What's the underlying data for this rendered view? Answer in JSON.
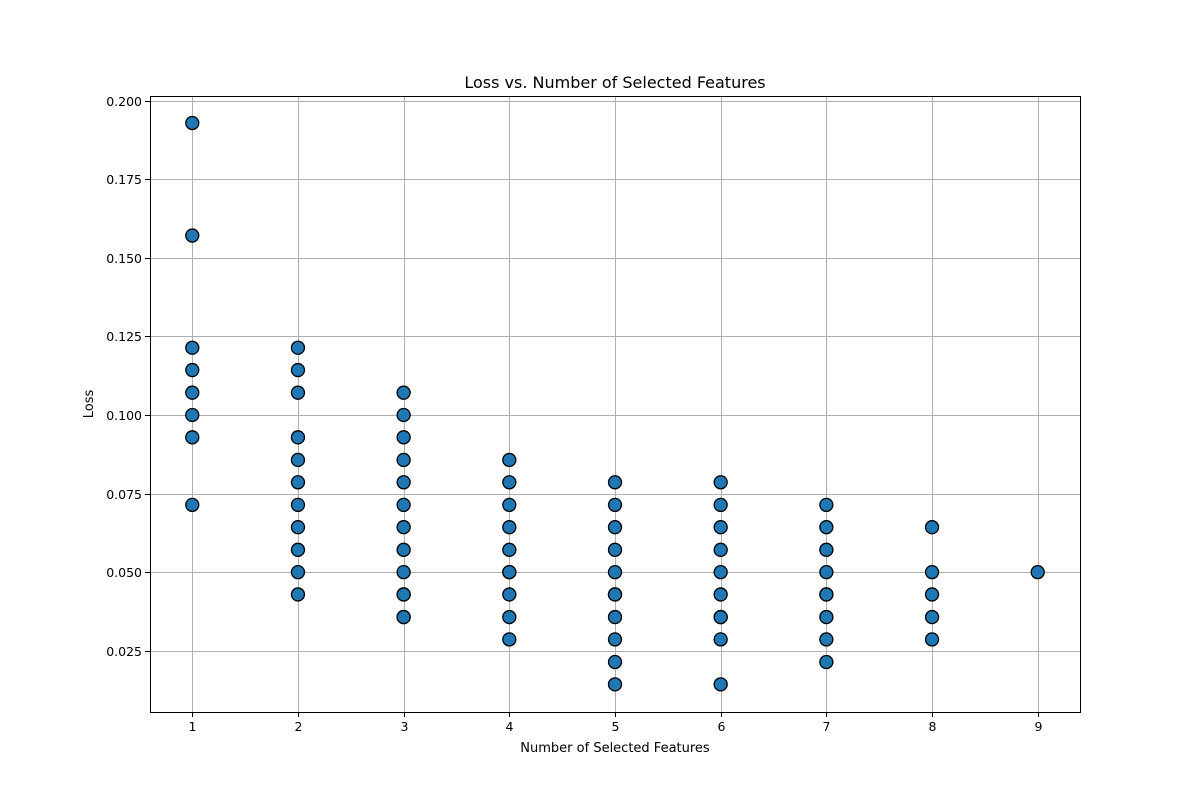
{
  "chart_data": {
    "type": "scatter",
    "title": "Loss vs. Number of Selected Features",
    "xlabel": "Number of Selected Features",
    "ylabel": "Loss",
    "xlim": [
      0.6,
      9.4
    ],
    "ylim": [
      0.0055,
      0.2015
    ],
    "xticks": [
      1,
      2,
      3,
      4,
      5,
      6,
      7,
      8,
      9
    ],
    "yticks": [
      0.025,
      0.05,
      0.075,
      0.1,
      0.125,
      0.15,
      0.175,
      0.2
    ],
    "ytick_labels": [
      "0.025",
      "0.050",
      "0.075",
      "0.100",
      "0.125",
      "0.150",
      "0.175",
      "0.200"
    ],
    "grid": true,
    "colors": {
      "point_fill": "#1f77b4",
      "point_edge": "#000000",
      "grid": "#b0b0b0"
    },
    "series": [
      {
        "x": [
          1,
          1,
          1,
          1,
          1,
          1,
          1,
          1,
          2,
          2,
          2,
          2,
          2,
          2,
          2,
          2,
          2,
          2,
          2,
          3,
          3,
          3,
          3,
          3,
          3,
          3,
          3,
          3,
          3,
          3,
          3,
          3,
          4,
          4,
          4,
          4,
          4,
          4,
          4,
          4,
          4,
          4,
          5,
          5,
          5,
          5,
          5,
          5,
          5,
          5,
          5,
          5,
          5,
          6,
          6,
          6,
          6,
          6,
          6,
          6,
          6,
          6,
          6,
          7,
          7,
          7,
          7,
          7,
          7,
          7,
          7,
          7,
          8,
          8,
          8,
          8,
          8,
          9
        ],
        "y": [
          0.1929,
          0.1571,
          0.1214,
          0.1143,
          0.1071,
          0.1,
          0.0929,
          0.0714,
          0.1214,
          0.1143,
          0.1071,
          0.0929,
          0.0857,
          0.0786,
          0.0714,
          0.0643,
          0.0571,
          0.05,
          0.0429,
          0.1071,
          0.1,
          0.0929,
          0.0857,
          0.0786,
          0.0714,
          0.0643,
          0.0571,
          0.05,
          0.0429,
          0.0357,
          0.0357,
          0.0429,
          0.0857,
          0.0786,
          0.0714,
          0.0643,
          0.0571,
          0.05,
          0.0429,
          0.0357,
          0.0286,
          0.05,
          0.0786,
          0.0714,
          0.0643,
          0.0571,
          0.05,
          0.0429,
          0.0357,
          0.0286,
          0.0214,
          0.0143,
          0.0429,
          0.0786,
          0.0714,
          0.0643,
          0.0571,
          0.05,
          0.0429,
          0.0357,
          0.0286,
          0.0143,
          0.0357,
          0.0714,
          0.0643,
          0.0571,
          0.05,
          0.0429,
          0.0357,
          0.0286,
          0.0214,
          0.0429,
          0.0643,
          0.05,
          0.0429,
          0.0357,
          0.0286,
          0.05
        ]
      }
    ]
  }
}
